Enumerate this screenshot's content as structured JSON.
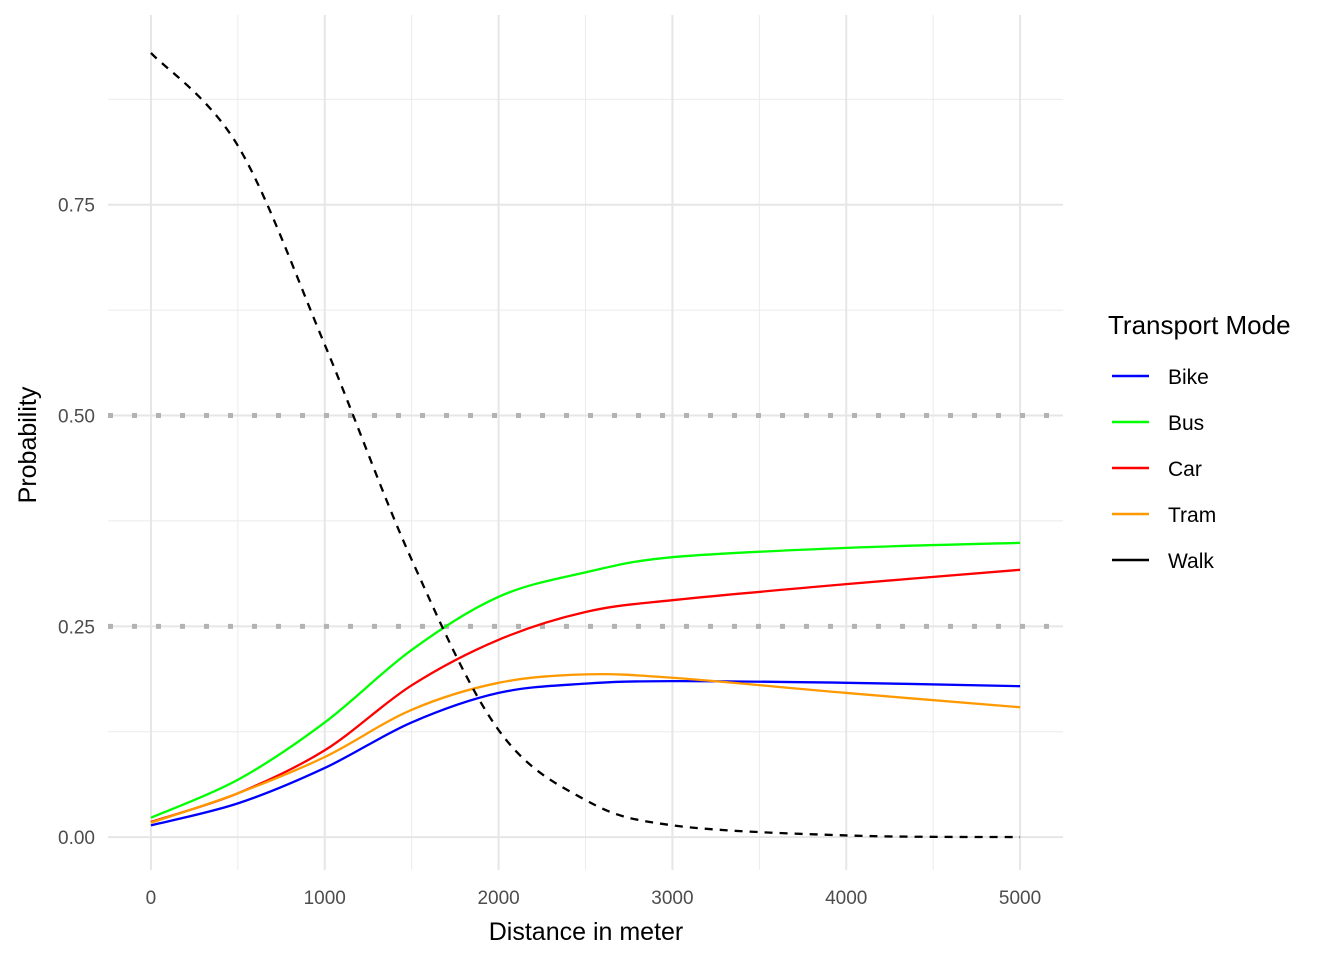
{
  "chart_data": {
    "type": "line",
    "title": "",
    "xlabel": "Distance in meter",
    "ylabel": "Probability",
    "xlim": [
      -247,
      5247
    ],
    "ylim": [
      -0.039,
      0.975
    ],
    "x_ticks": [
      0,
      1000,
      2000,
      3000,
      4000,
      5000
    ],
    "x_tick_labels": [
      "0",
      "1000",
      "2000",
      "3000",
      "4000",
      "5000"
    ],
    "y_ticks": [
      0,
      0.25,
      0.5,
      0.75
    ],
    "y_tick_labels": [
      "0.00",
      "0.25",
      "0.50",
      "0.75"
    ],
    "grid": true,
    "reference_lines": [
      0.25,
      0.5
    ],
    "legend": {
      "title": "Transport Mode",
      "position": "right"
    },
    "x": [
      0,
      500,
      1000,
      1500,
      2000,
      2500,
      3000,
      4000,
      5000
    ],
    "series": [
      {
        "name": "Bike",
        "color": "#0000ff",
        "dash": "solid",
        "values": [
          0.014,
          0.04,
          0.082,
          0.136,
          0.171,
          0.182,
          0.185,
          0.183,
          0.179
        ]
      },
      {
        "name": "Bus",
        "color": "#00ff00",
        "dash": "solid",
        "values": [
          0.023,
          0.068,
          0.136,
          0.222,
          0.285,
          0.314,
          0.332,
          0.343,
          0.349
        ]
      },
      {
        "name": "Car",
        "color": "#ff0000",
        "dash": "solid",
        "values": [
          0.018,
          0.052,
          0.103,
          0.18,
          0.234,
          0.267,
          0.281,
          0.3,
          0.317
        ]
      },
      {
        "name": "Tram",
        "color": "#ff9900",
        "dash": "solid",
        "values": [
          0.017,
          0.052,
          0.095,
          0.151,
          0.183,
          0.193,
          0.189,
          0.171,
          0.154
        ]
      },
      {
        "name": "Walk",
        "color": "#000000",
        "dash": "dashed",
        "values": [
          0.93,
          0.82,
          0.584,
          0.329,
          0.127,
          0.044,
          0.014,
          0.002,
          0.0
        ]
      }
    ]
  }
}
